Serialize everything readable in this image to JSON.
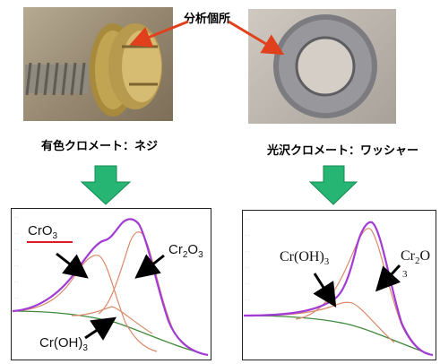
{
  "callout": {
    "label": "分析個所"
  },
  "captions": {
    "left": "有色クロメート：ネジ",
    "right": "光沢クロメート：ワッシャー"
  },
  "left_chart": {
    "labels": {
      "cro3_pre": "CrO",
      "cro3_sub": "3",
      "cr2o3_a": "Cr",
      "cr2o3_sub1": "2",
      "cr2o3_b": "O",
      "cr2o3_sub2": "3",
      "croh3_pre": "Cr(OH)",
      "croh3_sub": "3"
    }
  },
  "right_chart": {
    "labels": {
      "croh3_pre": "Cr(OH)",
      "croh3_sub": "3",
      "cr2o_a": "Cr",
      "cr2o_sub1": "2",
      "cr2o_b": "O",
      "cr2o_sub2": "3"
    }
  },
  "colors": {
    "envelope": "#a23bd6",
    "component": "#d98a6a",
    "baseline": "#3f8a3a",
    "arrow_down": "#27b573",
    "callout_arrow": "#e0401c",
    "underline": "#e11b1b"
  }
}
